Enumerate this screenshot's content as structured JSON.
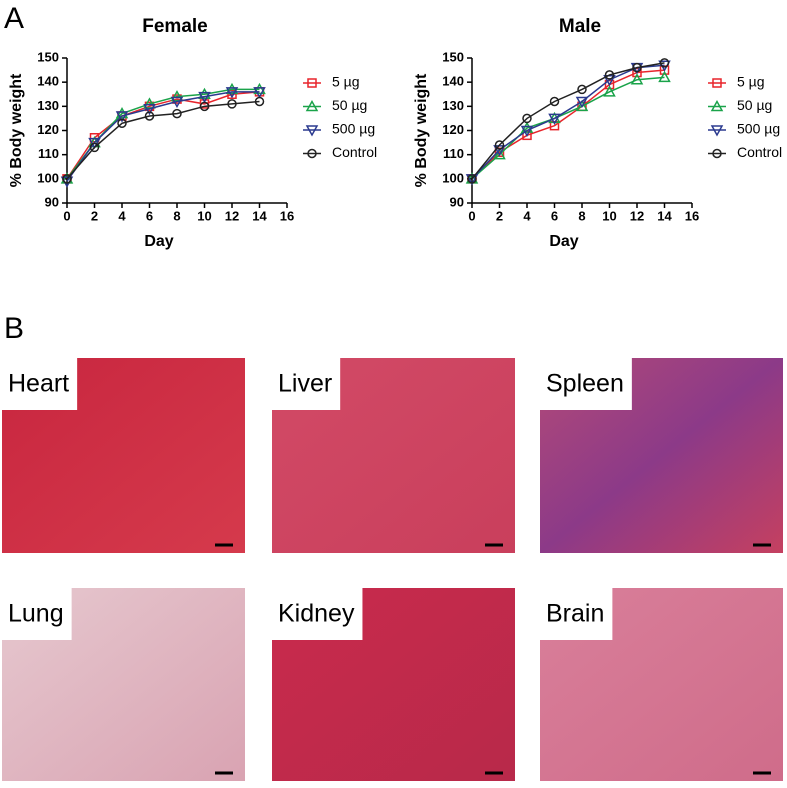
{
  "panel_a_label": "A",
  "panel_b_label": "B",
  "chart_data": [
    {
      "type": "line",
      "title": "Female",
      "xlabel": "Day",
      "ylabel": "% Body weight",
      "x": [
        0,
        2,
        4,
        6,
        8,
        10,
        12,
        14
      ],
      "xlim": [
        0,
        16
      ],
      "xticks": [
        0,
        2,
        4,
        6,
        8,
        10,
        12,
        14,
        16
      ],
      "ylim": [
        90,
        150
      ],
      "yticks": [
        90,
        100,
        110,
        120,
        130,
        140,
        150
      ],
      "legend": "right",
      "series": [
        {
          "name": "5 µg",
          "color": "#e8242b",
          "marker": "square",
          "values": [
            100,
            117,
            126,
            130,
            133,
            131,
            135,
            136
          ]
        },
        {
          "name": "50 µg",
          "color": "#1aa34a",
          "marker": "triangle",
          "values": [
            100,
            115,
            127,
            131,
            134,
            135,
            137,
            137
          ]
        },
        {
          "name": "500 µg",
          "color": "#2b3a8f",
          "marker": "triangle-down",
          "values": [
            99,
            115,
            126,
            129,
            132,
            134,
            136,
            136
          ]
        },
        {
          "name": "Control",
          "color": "#222222",
          "marker": "circle",
          "values": [
            100,
            113,
            123,
            126,
            127,
            130,
            131,
            132
          ]
        }
      ]
    },
    {
      "type": "line",
      "title": "Male",
      "xlabel": "Day",
      "ylabel": "% Body weight",
      "x": [
        0,
        2,
        4,
        6,
        8,
        10,
        12,
        14
      ],
      "xlim": [
        0,
        16
      ],
      "xticks": [
        0,
        2,
        4,
        6,
        8,
        10,
        12,
        14,
        16
      ],
      "ylim": [
        90,
        150
      ],
      "yticks": [
        90,
        100,
        110,
        120,
        130,
        140,
        150
      ],
      "legend": "right",
      "series": [
        {
          "name": "5 µg",
          "color": "#e8242b",
          "marker": "square",
          "values": [
            100,
            111,
            118,
            122,
            130,
            139,
            144,
            145
          ]
        },
        {
          "name": "50 µg",
          "color": "#1aa34a",
          "marker": "triangle",
          "values": [
            100,
            110,
            121,
            125,
            130,
            136,
            141,
            142
          ]
        },
        {
          "name": "500 µg",
          "color": "#2b3a8f",
          "marker": "triangle-down",
          "values": [
            100,
            112,
            120,
            125,
            132,
            141,
            146,
            147
          ]
        },
        {
          "name": "Control",
          "color": "#222222",
          "marker": "circle",
          "values": [
            100,
            114,
            125,
            132,
            137,
            143,
            146,
            148
          ]
        }
      ]
    }
  ],
  "images": [
    {
      "label": "Heart"
    },
    {
      "label": "Liver"
    },
    {
      "label": "Spleen"
    },
    {
      "label": "Lung"
    },
    {
      "label": "Kidney"
    },
    {
      "label": "Brain"
    }
  ]
}
